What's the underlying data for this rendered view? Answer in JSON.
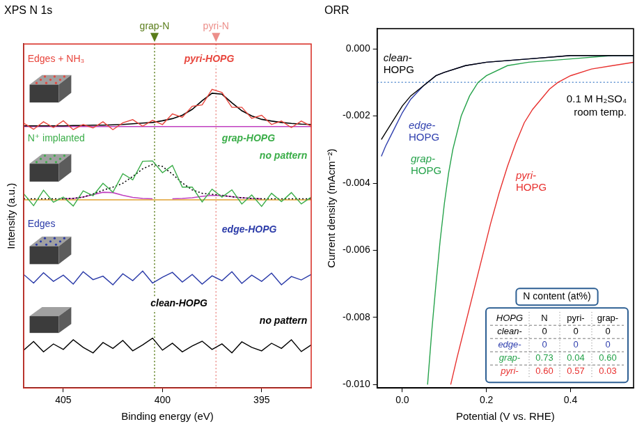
{
  "chart_data": [
    {
      "type": "line",
      "title": "XPS N 1s",
      "x_label": "Binding energy (eV)",
      "y_label": "Intensity (a.u.)",
      "xlim": [
        407,
        392.5
      ],
      "xticks": [
        405,
        400,
        395
      ],
      "ylim": [
        0,
        10
      ],
      "tick_labels": "x",
      "grid": false,
      "reference_lines": [
        {
          "label": "grap-N",
          "x": 400.4,
          "color": "#5a7d1a",
          "line_style": "dotted"
        },
        {
          "label": "pyri-N",
          "x": 397.3,
          "color": "#ec8f8a",
          "line_style": "dotted"
        }
      ],
      "series": [
        {
          "name": "pyri-HOPG",
          "color": "#e8453c",
          "annotations": [
            "Edges + NH₃"
          ],
          "x": [
            407,
            406.5,
            406,
            405.5,
            405,
            404.5,
            404,
            403.5,
            403,
            402.5,
            402,
            401.5,
            401,
            400.5,
            400,
            399.5,
            399,
            398.5,
            398,
            397.5,
            397,
            396.5,
            396,
            395.5,
            395,
            394.5,
            394,
            393.5,
            393,
            392.5
          ],
          "values": [
            7.7,
            7.52,
            7.74,
            7.57,
            7.77,
            7.51,
            7.66,
            7.56,
            7.74,
            7.51,
            7.71,
            7.8,
            7.61,
            7.78,
            7.66,
            7.97,
            7.87,
            8.19,
            8.23,
            8.68,
            8.59,
            8.16,
            8.16,
            7.84,
            7.93,
            7.66,
            7.76,
            7.57,
            7.76,
            7.61
          ]
        },
        {
          "color": "#000000",
          "line_style": "solid",
          "x": [
            407,
            406.5,
            406,
            405.5,
            405,
            404.5,
            404,
            403.5,
            403,
            402.5,
            402,
            401.5,
            401,
            400.5,
            400,
            399.5,
            399,
            398.5,
            398,
            397.5,
            397,
            396.5,
            396,
            395.5,
            395,
            394.5,
            394,
            393.5,
            393,
            392.5
          ],
          "values": [
            7.62,
            7.62,
            7.62,
            7.62,
            7.62,
            7.63,
            7.63,
            7.64,
            7.64,
            7.65,
            7.66,
            7.68,
            7.7,
            7.72,
            7.77,
            7.83,
            7.93,
            8.1,
            8.35,
            8.57,
            8.54,
            8.29,
            8.06,
            7.91,
            7.81,
            7.76,
            7.72,
            7.69,
            7.67,
            7.66
          ]
        },
        {
          "color": "#c040c0",
          "line_style": "solid",
          "x": [
            407,
            392.5
          ],
          "values": [
            7.6,
            7.6
          ]
        },
        {
          "name": "grap-HOPG",
          "color": "#3aad48",
          "annotations": [
            "N⁺ implanted",
            "no pattern"
          ],
          "x": [
            407,
            406.5,
            406,
            405.5,
            405,
            404.5,
            404,
            403.5,
            403,
            402.5,
            402,
            401.5,
            401,
            400.5,
            400,
            399.5,
            399,
            398.5,
            398,
            397.5,
            397,
            396.5,
            396,
            395.5,
            395,
            394.5,
            394,
            393.5,
            393,
            392.5
          ],
          "values": [
            5.65,
            5.3,
            5.75,
            5.4,
            5.55,
            5.29,
            5.73,
            5.59,
            5.95,
            5.69,
            6.23,
            6.05,
            6.59,
            6.6,
            6.26,
            6.47,
            5.84,
            5.84,
            5.41,
            5.78,
            5.55,
            5.76,
            5.35,
            5.61,
            5.28,
            5.66,
            5.42,
            5.68,
            5.35,
            5.55
          ]
        },
        {
          "color": "#000000",
          "line_style": "dotted",
          "x": [
            407,
            406.5,
            406,
            405.5,
            405,
            404.5,
            404,
            403.5,
            403,
            402.5,
            402,
            401.5,
            401,
            400.5,
            400,
            399.5,
            399,
            398.5,
            398,
            397.5,
            397,
            396.5,
            396,
            395.5,
            395,
            394.5,
            394,
            393.5,
            393,
            392.5
          ],
          "values": [
            5.5,
            5.5,
            5.5,
            5.5,
            5.5,
            5.51,
            5.55,
            5.64,
            5.75,
            5.84,
            5.95,
            6.15,
            6.37,
            6.5,
            6.44,
            6.22,
            5.96,
            5.76,
            5.66,
            5.63,
            5.6,
            5.56,
            5.53,
            5.51,
            5.5,
            5.5,
            5.5,
            5.5,
            5.5,
            5.5
          ]
        },
        {
          "color": "#c040c0",
          "line_style": "solid",
          "x": [
            405,
            404.5,
            404,
            403.5,
            403,
            402.5,
            402,
            401.5,
            401,
            400.5
          ],
          "values": [
            5.5,
            5.51,
            5.55,
            5.62,
            5.69,
            5.68,
            5.6,
            5.54,
            5.51,
            5.5
          ]
        },
        {
          "color": "#c040c0",
          "line_style": "solid",
          "x": [
            399.5,
            399,
            398.5,
            398,
            397.5,
            397,
            396.5,
            396,
            395.5,
            395
          ],
          "values": [
            5.5,
            5.51,
            5.53,
            5.57,
            5.6,
            5.59,
            5.56,
            5.53,
            5.51,
            5.5
          ]
        },
        {
          "color": "#e0a030",
          "line_style": "solid",
          "x": [
            407,
            392.5
          ],
          "values": [
            5.47,
            5.47
          ]
        },
        {
          "name": "edge-HOPG",
          "color": "#2a3aa8",
          "annotations": [
            "Edges"
          ],
          "x": [
            407,
            406.5,
            406,
            405.5,
            405,
            404.5,
            404,
            403.5,
            403,
            402.5,
            402,
            401.5,
            401,
            400.5,
            400,
            399.5,
            399,
            398.5,
            398,
            397.5,
            397,
            396.5,
            396,
            395.5,
            395,
            394.5,
            394,
            393.5,
            393,
            392.5
          ],
          "values": [
            3.3,
            3.05,
            3.35,
            3.1,
            3.28,
            3.02,
            3.38,
            3.15,
            3.25,
            3.0,
            3.32,
            3.12,
            3.4,
            3.05,
            3.22,
            3.36,
            3.08,
            3.3,
            3.02,
            3.26,
            3.12,
            3.38,
            3.04,
            3.28,
            3.1,
            3.34,
            3.0,
            3.24,
            3.14,
            3.3
          ]
        },
        {
          "name": "clean-HOPG",
          "color": "#000000",
          "annotations": [
            "no pattern"
          ],
          "x": [
            407,
            406.5,
            406,
            405.5,
            405,
            404.5,
            404,
            403.5,
            403,
            402.5,
            402,
            401.5,
            401,
            400.5,
            400,
            399.5,
            399,
            398.5,
            398,
            397.5,
            397,
            396.5,
            396,
            395.5,
            395,
            394.5,
            394,
            393.5,
            393,
            392.5
          ],
          "values": [
            1.1,
            1.35,
            1.05,
            1.28,
            1.12,
            1.4,
            1.18,
            1.02,
            1.32,
            1.15,
            1.38,
            1.08,
            1.25,
            1.45,
            1.1,
            1.3,
            1.05,
            1.22,
            1.36,
            1.12,
            1.28,
            1.02,
            1.34,
            1.18,
            1.08,
            1.3,
            1.15,
            1.4,
            1.06,
            1.25
          ]
        }
      ]
    },
    {
      "type": "line",
      "title": "ORR",
      "x_label": "Potential (V vs. RHE)",
      "y_label": "Current density (mAcm⁻²)",
      "xlim": [
        -0.06,
        0.55
      ],
      "xticks": [
        {
          "value": 0,
          "label": "0.0"
        },
        0.2,
        0.4
      ],
      "ylim": [
        -0.0101,
        0.0006
      ],
      "yticks": [
        {
          "value": -0.01,
          "label": "-0.010"
        },
        -0.008,
        -0.006,
        -0.004,
        -0.002,
        {
          "value": 0,
          "label": "0.000"
        }
      ],
      "grid": false,
      "reference_lines": [
        {
          "y": -0.001,
          "color": "#5b8fd0",
          "line_style": "dotted"
        }
      ],
      "annotations": [
        "0.1 M H₂SO₄",
        "room temp."
      ],
      "series": [
        {
          "name": "clean-HOPG",
          "color": "#000000",
          "x": [
            -0.05,
            -0.04,
            -0.02,
            0,
            0.02,
            0.05,
            0.08,
            0.1,
            0.15,
            0.2,
            0.3,
            0.4,
            0.5,
            0.55
          ],
          "values": [
            -0.0027,
            -0.0025,
            -0.0021,
            -0.0017,
            -0.0014,
            -0.0011,
            -0.0008,
            -0.0007,
            -0.0005,
            -0.0004,
            -0.0003,
            -0.0002,
            -0.0002,
            -0.0002
          ]
        },
        {
          "name": "edge-HOPG",
          "color": "#2f3fae",
          "x": [
            -0.05,
            -0.04,
            -0.02,
            0,
            0.02,
            0.05,
            0.08,
            0.1,
            0.15,
            0.2,
            0.3,
            0.4,
            0.5,
            0.55
          ],
          "values": [
            -0.0032,
            -0.0029,
            -0.0024,
            -0.0019,
            -0.0015,
            -0.0011,
            -0.0008,
            -0.0007,
            -0.0005,
            -0.0004,
            -0.0003,
            -0.0002,
            -0.0002,
            -0.0002
          ]
        },
        {
          "name": "grap-HOPG",
          "color": "#25a24a",
          "x": [
            0.06,
            0.07,
            0.08,
            0.09,
            0.1,
            0.11,
            0.12,
            0.14,
            0.16,
            0.18,
            0.2,
            0.25,
            0.3,
            0.4,
            0.5,
            0.55
          ],
          "values": [
            -0.01,
            -0.0084,
            -0.007,
            -0.0057,
            -0.0046,
            -0.0037,
            -0.003,
            -0.002,
            -0.0014,
            -0.001,
            -0.0008,
            -0.0005,
            -0.0004,
            -0.0003,
            -0.0002,
            -0.0002
          ]
        },
        {
          "name": "pyri-HOPG",
          "color": "#e8312f",
          "x": [
            0.115,
            0.13,
            0.15,
            0.17,
            0.19,
            0.21,
            0.23,
            0.25,
            0.27,
            0.29,
            0.31,
            0.33,
            0.35,
            0.37,
            0.4,
            0.45,
            0.5,
            0.55
          ],
          "values": [
            -0.01,
            -0.0092,
            -0.0082,
            -0.0072,
            -0.0062,
            -0.0052,
            -0.0043,
            -0.0035,
            -0.0028,
            -0.0022,
            -0.0018,
            -0.0015,
            -0.0012,
            -0.001,
            -0.0008,
            -0.0006,
            -0.0005,
            -0.0004
          ]
        }
      ],
      "table": {
        "title": "N content (at%)",
        "columns": [
          "HOPG",
          "N",
          "pyri-",
          "grap-"
        ],
        "rows": [
          {
            "label": "clean-",
            "color": "#000000",
            "cells": [
              "0",
              "0",
              "0"
            ]
          },
          {
            "label": "edge-",
            "color": "#2f3fae",
            "cells": [
              "0",
              "0",
              "0"
            ]
          },
          {
            "label": "grap-",
            "color": "#25a24a",
            "cells": [
              "0.73",
              "0.04",
              "0.60"
            ]
          },
          {
            "label": "pyri-",
            "color": "#e8312f",
            "cells": [
              "0.60",
              "0.57",
              "0.03"
            ]
          }
        ]
      }
    }
  ]
}
